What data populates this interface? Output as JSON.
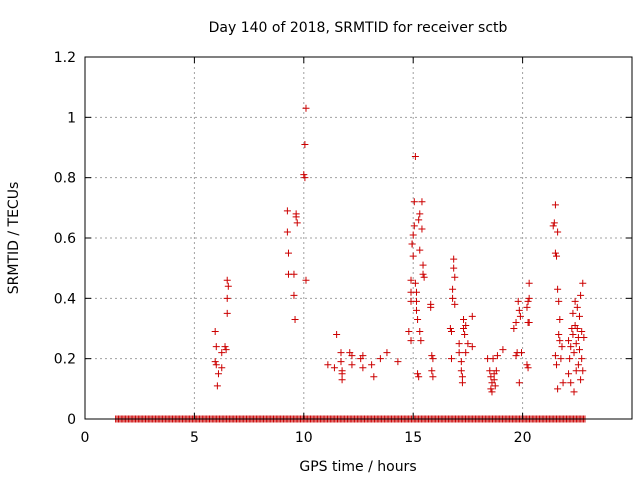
{
  "chart_data": {
    "type": "scatter",
    "title": "Day 140 of 2018, SRMTID for receiver sctb",
    "xlabel": "GPS time / hours",
    "ylabel": "SRMTID / TECUs",
    "xlim": [
      0,
      25
    ],
    "ylim": [
      0,
      1.2
    ],
    "grid": true,
    "x_ticks": [
      0,
      5,
      10,
      15,
      20
    ],
    "y_ticks": [
      0,
      0.2,
      0.4,
      0.6,
      0.8,
      1,
      1.2
    ],
    "x_tick_labels": [
      "0",
      "5",
      "10",
      "15",
      "20"
    ],
    "y_tick_labels": [
      "0",
      "0.2",
      "0.4",
      "0.6",
      "0.8",
      "1",
      "1.2"
    ],
    "marker": "plus",
    "color": "#cc0000",
    "series": [
      {
        "name": "SRMTID",
        "points": [
          [
            5.95,
            0.29
          ],
          [
            6.0,
            0.24
          ],
          [
            5.95,
            0.19
          ],
          [
            6.0,
            0.18
          ],
          [
            6.05,
            0.11
          ],
          [
            6.1,
            0.15
          ],
          [
            6.25,
            0.17
          ],
          [
            6.25,
            0.22
          ],
          [
            6.4,
            0.24
          ],
          [
            6.45,
            0.23
          ],
          [
            6.5,
            0.46
          ],
          [
            6.55,
            0.44
          ],
          [
            6.5,
            0.4
          ],
          [
            6.5,
            0.35
          ],
          [
            9.25,
            0.69
          ],
          [
            9.25,
            0.62
          ],
          [
            9.3,
            0.55
          ],
          [
            9.3,
            0.48
          ],
          [
            9.55,
            0.48
          ],
          [
            9.55,
            0.41
          ],
          [
            9.6,
            0.33
          ],
          [
            9.65,
            0.68
          ],
          [
            9.65,
            0.67
          ],
          [
            9.7,
            0.65
          ],
          [
            10.0,
            0.81
          ],
          [
            10.05,
            0.8
          ],
          [
            10.05,
            0.91
          ],
          [
            10.1,
            1.03
          ],
          [
            10.1,
            0.46
          ],
          [
            11.1,
            0.18
          ],
          [
            11.4,
            0.17
          ],
          [
            11.5,
            0.28
          ],
          [
            11.7,
            0.22
          ],
          [
            11.7,
            0.19
          ],
          [
            11.75,
            0.16
          ],
          [
            11.75,
            0.15
          ],
          [
            11.75,
            0.13
          ],
          [
            12.1,
            0.22
          ],
          [
            12.2,
            0.21
          ],
          [
            12.2,
            0.18
          ],
          [
            12.6,
            0.2
          ],
          [
            12.7,
            0.21
          ],
          [
            12.7,
            0.17
          ],
          [
            13.1,
            0.18
          ],
          [
            13.2,
            0.14
          ],
          [
            13.5,
            0.2
          ],
          [
            13.8,
            0.22
          ],
          [
            14.3,
            0.19
          ],
          [
            14.8,
            0.29
          ],
          [
            14.9,
            0.26
          ],
          [
            14.9,
            0.42
          ],
          [
            14.9,
            0.39
          ],
          [
            14.9,
            0.46
          ],
          [
            14.95,
            0.58
          ],
          [
            14.95,
            0.58
          ],
          [
            15.0,
            0.54
          ],
          [
            15.0,
            0.61
          ],
          [
            15.05,
            0.64
          ],
          [
            15.05,
            0.72
          ],
          [
            15.1,
            0.87
          ],
          [
            15.1,
            0.45
          ],
          [
            15.15,
            0.42
          ],
          [
            15.15,
            0.39
          ],
          [
            15.15,
            0.36
          ],
          [
            15.2,
            0.33
          ],
          [
            15.25,
            0.66
          ],
          [
            15.3,
            0.68
          ],
          [
            15.3,
            0.56
          ],
          [
            15.3,
            0.29
          ],
          [
            15.35,
            0.26
          ],
          [
            15.4,
            0.72
          ],
          [
            15.4,
            0.63
          ],
          [
            15.45,
            0.51
          ],
          [
            15.45,
            0.48
          ],
          [
            15.5,
            0.47
          ],
          [
            15.2,
            0.15
          ],
          [
            15.25,
            0.14
          ],
          [
            15.8,
            0.38
          ],
          [
            15.8,
            0.37
          ],
          [
            15.85,
            0.21
          ],
          [
            15.9,
            0.2
          ],
          [
            15.85,
            0.16
          ],
          [
            15.9,
            0.14
          ],
          [
            16.7,
            0.3
          ],
          [
            16.75,
            0.29
          ],
          [
            16.75,
            0.2
          ],
          [
            16.8,
            0.43
          ],
          [
            16.8,
            0.4
          ],
          [
            16.85,
            0.53
          ],
          [
            16.85,
            0.5
          ],
          [
            16.9,
            0.47
          ],
          [
            16.9,
            0.38
          ],
          [
            17.1,
            0.25
          ],
          [
            17.1,
            0.22
          ],
          [
            17.2,
            0.19
          ],
          [
            17.2,
            0.16
          ],
          [
            17.25,
            0.14
          ],
          [
            17.25,
            0.12
          ],
          [
            17.3,
            0.3
          ],
          [
            17.3,
            0.33
          ],
          [
            17.35,
            0.28
          ],
          [
            17.4,
            0.31
          ],
          [
            17.4,
            0.22
          ],
          [
            17.5,
            0.25
          ],
          [
            17.7,
            0.34
          ],
          [
            17.7,
            0.24
          ],
          [
            18.4,
            0.2
          ],
          [
            18.5,
            0.16
          ],
          [
            18.55,
            0.14
          ],
          [
            18.55,
            0.1
          ],
          [
            18.6,
            0.12
          ],
          [
            18.6,
            0.09
          ],
          [
            18.65,
            0.2
          ],
          [
            18.7,
            0.15
          ],
          [
            18.7,
            0.13
          ],
          [
            18.75,
            0.11
          ],
          [
            18.8,
            0.16
          ],
          [
            18.85,
            0.21
          ],
          [
            19.1,
            0.23
          ],
          [
            19.6,
            0.3
          ],
          [
            19.7,
            0.32
          ],
          [
            19.7,
            0.21
          ],
          [
            19.75,
            0.22
          ],
          [
            19.8,
            0.39
          ],
          [
            19.85,
            0.36
          ],
          [
            19.9,
            0.34
          ],
          [
            19.85,
            0.12
          ],
          [
            19.95,
            0.22
          ],
          [
            20.2,
            0.37
          ],
          [
            20.25,
            0.39
          ],
          [
            20.3,
            0.4
          ],
          [
            20.3,
            0.45
          ],
          [
            20.25,
            0.32
          ],
          [
            20.3,
            0.32
          ],
          [
            20.2,
            0.18
          ],
          [
            20.25,
            0.17
          ],
          [
            21.4,
            0.64
          ],
          [
            21.45,
            0.65
          ],
          [
            21.5,
            0.71
          ],
          [
            21.5,
            0.55
          ],
          [
            21.55,
            0.54
          ],
          [
            21.6,
            0.62
          ],
          [
            21.6,
            0.43
          ],
          [
            21.65,
            0.39
          ],
          [
            21.7,
            0.33
          ],
          [
            21.5,
            0.21
          ],
          [
            21.55,
            0.18
          ],
          [
            21.6,
            0.1
          ],
          [
            21.65,
            0.28
          ],
          [
            21.7,
            0.26
          ],
          [
            21.75,
            0.2
          ],
          [
            21.8,
            0.24
          ],
          [
            21.85,
            0.12
          ],
          [
            22.1,
            0.26
          ],
          [
            22.1,
            0.15
          ],
          [
            22.15,
            0.2
          ],
          [
            22.2,
            0.12
          ],
          [
            22.2,
            0.24
          ],
          [
            22.25,
            0.3
          ],
          [
            22.3,
            0.35
          ],
          [
            22.3,
            0.28
          ],
          [
            22.35,
            0.22
          ],
          [
            22.35,
            0.09
          ],
          [
            22.4,
            0.39
          ],
          [
            22.4,
            0.31
          ],
          [
            22.45,
            0.25
          ],
          [
            22.45,
            0.16
          ],
          [
            22.5,
            0.37
          ],
          [
            22.5,
            0.3
          ],
          [
            22.55,
            0.27
          ],
          [
            22.55,
            0.18
          ],
          [
            22.6,
            0.34
          ],
          [
            22.6,
            0.23
          ],
          [
            22.65,
            0.41
          ],
          [
            22.65,
            0.13
          ],
          [
            22.7,
            0.29
          ],
          [
            22.7,
            0.2
          ],
          [
            22.75,
            0.45
          ],
          [
            22.75,
            0.16
          ],
          [
            22.8,
            0.27
          ]
        ]
      }
    ],
    "zero_band": {
      "x_start": 1.4,
      "x_end": 22.9,
      "step": 0.065,
      "value": 0
    }
  }
}
